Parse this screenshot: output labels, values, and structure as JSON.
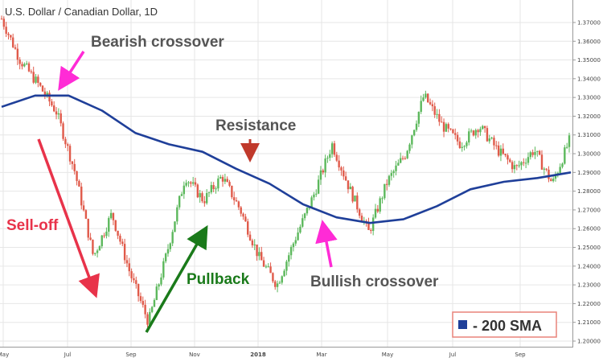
{
  "chart_data": {
    "type": "candlestick",
    "title": "U.S. Dollar / Canadian Dollar, 1D",
    "y_ticks": [
      "1.37000",
      "1.36000",
      "1.35000",
      "1.34000",
      "1.33000",
      "1.32000",
      "1.31000",
      "1.30000",
      "1.29000",
      "1.28000",
      "1.27000",
      "1.26000",
      "1.25000",
      "1.24000",
      "1.23000",
      "1.22000",
      "1.21000",
      "1.20000"
    ],
    "x_ticks": [
      "May",
      "Jul",
      "Sep",
      "Nov",
      "2018",
      "Mar",
      "May",
      "Jul",
      "Sep"
    ],
    "ylim": [
      1.197,
      1.382
    ],
    "grid": true,
    "colors": {
      "up": "#5cb85c",
      "down": "#e05a4a",
      "sma": "#1f3f99",
      "grid": "#e6e6e6"
    },
    "price_path": [
      {
        "x": "May",
        "y": 1.372
      },
      {
        "x": "Jun",
        "y": 1.35
      },
      {
        "x": "Jun",
        "y": 1.337
      },
      {
        "x": "Jul",
        "y": 1.322
      },
      {
        "x": "Jul",
        "y": 1.29
      },
      {
        "x": "Aug",
        "y": 1.245
      },
      {
        "x": "Aug",
        "y": 1.268
      },
      {
        "x": "Sep",
        "y": 1.236
      },
      {
        "x": "Sep",
        "y": 1.21
      },
      {
        "x": "Oct",
        "y": 1.247
      },
      {
        "x": "Oct",
        "y": 1.288
      },
      {
        "x": "Nov",
        "y": 1.275
      },
      {
        "x": "Dec",
        "y": 1.288
      },
      {
        "x": "Dec",
        "y": 1.27
      },
      {
        "x": "Jan",
        "y": 1.245
      },
      {
        "x": "Feb",
        "y": 1.23
      },
      {
        "x": "Feb",
        "y": 1.255
      },
      {
        "x": "Mar",
        "y": 1.278
      },
      {
        "x": "Mar",
        "y": 1.305
      },
      {
        "x": "Apr",
        "y": 1.28
      },
      {
        "x": "Apr",
        "y": 1.258
      },
      {
        "x": "May",
        "y": 1.285
      },
      {
        "x": "Jun",
        "y": 1.3
      },
      {
        "x": "Jun",
        "y": 1.331
      },
      {
        "x": "Jul",
        "y": 1.315
      },
      {
        "x": "Jul",
        "y": 1.305
      },
      {
        "x": "Aug",
        "y": 1.315
      },
      {
        "x": "Aug",
        "y": 1.302
      },
      {
        "x": "Sep",
        "y": 1.292
      },
      {
        "x": "Sep",
        "y": 1.302
      },
      {
        "x": "Oct",
        "y": 1.284
      },
      {
        "x": "Oct",
        "y": 1.309
      }
    ],
    "sma_path": [
      {
        "x": "May",
        "y": 1.325
      },
      {
        "x": "Jun",
        "y": 1.331
      },
      {
        "x": "Jul",
        "y": 1.331
      },
      {
        "x": "Aug",
        "y": 1.323
      },
      {
        "x": "Sep",
        "y": 1.311
      },
      {
        "x": "Oct",
        "y": 1.305
      },
      {
        "x": "Nov",
        "y": 1.301
      },
      {
        "x": "Dec",
        "y": 1.292
      },
      {
        "x": "Jan",
        "y": 1.284
      },
      {
        "x": "Feb",
        "y": 1.273
      },
      {
        "x": "Mar",
        "y": 1.266
      },
      {
        "x": "Apr",
        "y": 1.263
      },
      {
        "x": "May",
        "y": 1.265
      },
      {
        "x": "Jun",
        "y": 1.272
      },
      {
        "x": "Jul",
        "y": 1.281
      },
      {
        "x": "Aug",
        "y": 1.285
      },
      {
        "x": "Sep",
        "y": 1.287
      },
      {
        "x": "Oct",
        "y": 1.29
      }
    ],
    "annotations": {
      "bearish": "Bearish crossover",
      "resistance": "Resistance",
      "selloff": "Sell-off",
      "pullback": "Pullback",
      "bullish": "Bullish crossover"
    },
    "annotation_colors": {
      "bearish": "#ff2bd6",
      "resistance": "#c0392b",
      "selloff": "#e8334a",
      "pullback": "#1a7a1a",
      "bullish": "#ff2bd6",
      "text_dark": "#555555"
    },
    "legend": {
      "label": "- 200 SMA",
      "swatch_color": "#1f3f99",
      "border_color": "#e8837a"
    }
  }
}
